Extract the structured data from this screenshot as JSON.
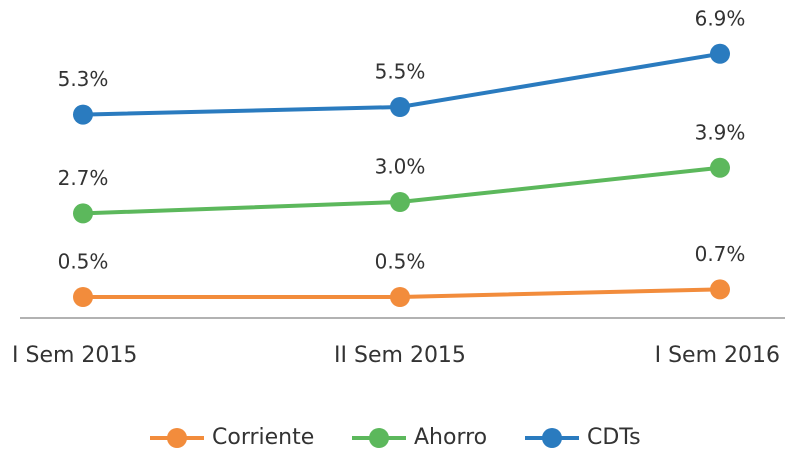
{
  "chart_data": {
    "type": "line",
    "categories": [
      "I Sem 2015",
      "II Sem 2015",
      "I Sem 2016"
    ],
    "ylim": [
      0,
      7.5
    ],
    "series": [
      {
        "name": "Corriente",
        "color": "#f28c3c",
        "values": [
          0.5,
          0.5,
          0.7
        ],
        "value_labels": [
          "0.5%",
          "0.5%",
          "0.7%"
        ]
      },
      {
        "name": "Ahorro",
        "color": "#5cb85c",
        "values": [
          2.7,
          3.0,
          3.9
        ],
        "value_labels": [
          "2.7%",
          "3.0%",
          "3.9%"
        ]
      },
      {
        "name": "CDTs",
        "color": "#2a7bbf",
        "values": [
          5.3,
          5.5,
          6.9
        ],
        "value_labels": [
          "5.3%",
          "5.5%",
          "6.9%"
        ]
      }
    ]
  }
}
